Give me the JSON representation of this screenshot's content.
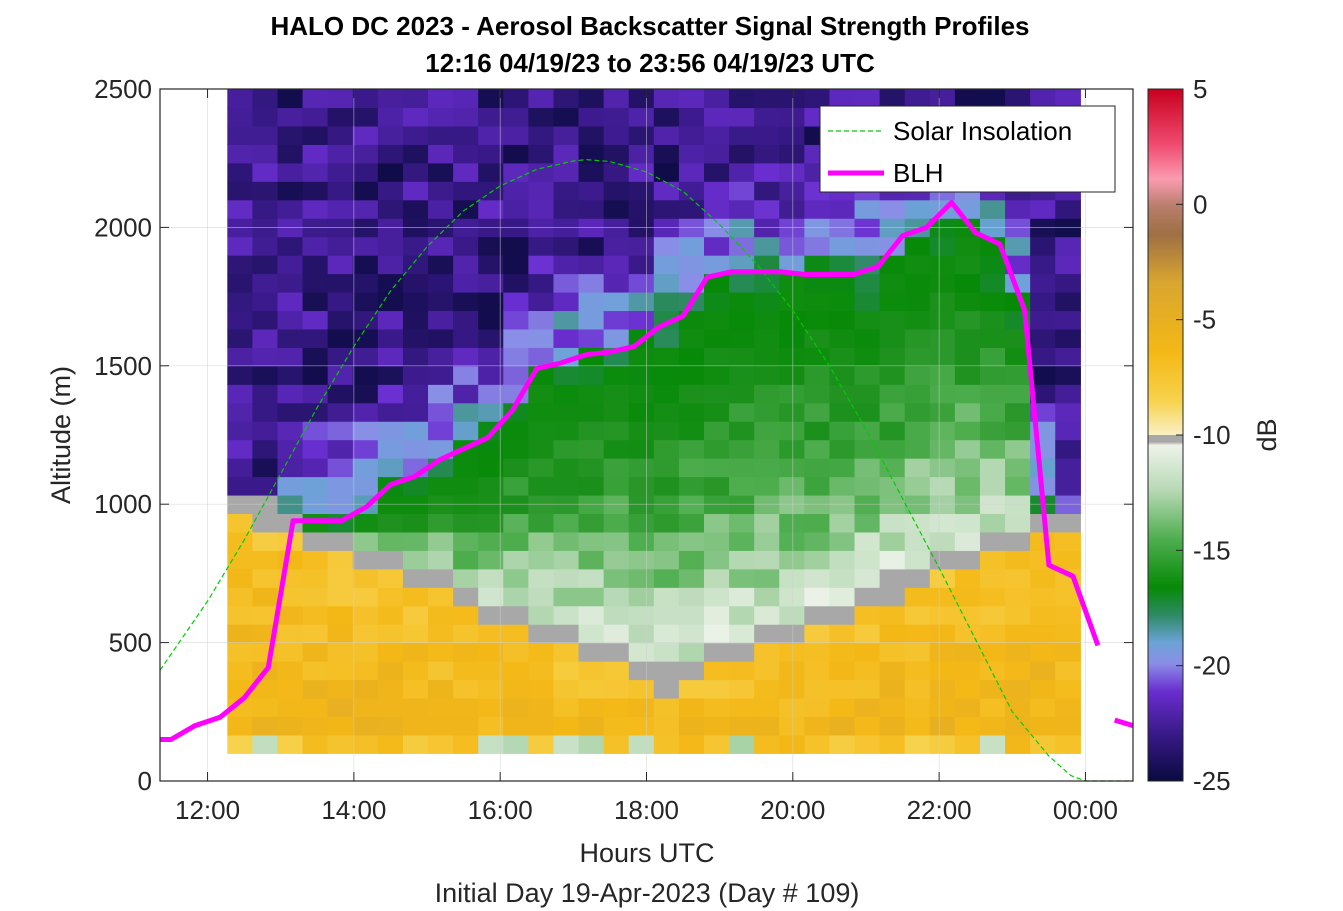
{
  "chart_data": {
    "type": "heatmap",
    "title_line1": "HALO DC 2023 - Aerosol Backscatter Signal Strength Profiles",
    "title_line2": "12:16 04/19/23 to 23:56 04/19/23  UTC",
    "xlabel": "Hours UTC",
    "xlabel_sub": "Initial Day 19-Apr-2023 (Day # 109)",
    "ylabel": "Altitude (m)",
    "xlim": [
      11.35,
      24.65
    ],
    "ylim": [
      0,
      2500
    ],
    "x_ticks": [
      12,
      14,
      16,
      18,
      20,
      22,
      24
    ],
    "x_tick_labels": [
      "12:00",
      "14:00",
      "16:00",
      "18:00",
      "20:00",
      "22:00",
      "00:00"
    ],
    "y_ticks": [
      0,
      500,
      1000,
      1500,
      2000,
      2500
    ],
    "y_tick_labels": [
      "0",
      "500",
      "1000",
      "1500",
      "2000",
      "2500"
    ],
    "grid": true,
    "colorbar": {
      "label": "dB",
      "range": [
        -25,
        5
      ],
      "ticks": [
        5,
        0,
        -5,
        -10,
        -15,
        -20,
        -25
      ],
      "tick_labels": [
        "5",
        "0",
        "-5",
        "-10",
        "-15",
        "-20",
        "-25"
      ]
    },
    "legend": {
      "placement": "top-right",
      "entries": [
        {
          "label": "Solar Insolation",
          "color": "#00cc00",
          "style": "dashed"
        },
        {
          "label": "BLH",
          "color": "#ff00ff",
          "style": "solid"
        }
      ]
    },
    "heatmap": {
      "x_start_hour": 12.27,
      "x_end_hour": 23.93,
      "altitude_min": 100,
      "altitude_max": 2500,
      "n_columns": 34,
      "n_rows": 36
    },
    "solar_insolation": {
      "x": [
        11.35,
        12.0,
        12.5,
        13.0,
        13.5,
        14.0,
        14.5,
        15.0,
        15.5,
        16.0,
        16.5,
        17.0,
        17.17,
        17.5,
        18.0,
        18.5,
        19.0,
        19.5,
        20.0,
        20.5,
        21.0,
        21.5,
        22.0,
        22.5,
        23.0,
        23.5,
        23.8,
        24.0,
        24.65
      ],
      "y": [
        400,
        650,
        870,
        1110,
        1350,
        1570,
        1770,
        1930,
        2060,
        2150,
        2210,
        2240,
        2245,
        2238,
        2200,
        2130,
        2010,
        1870,
        1700,
        1500,
        1270,
        1020,
        770,
        510,
        250,
        90,
        20,
        0,
        0
      ]
    },
    "blh": {
      "segments": [
        {
          "x": [
            11.35,
            11.5,
            11.83,
            12.17,
            12.5,
            12.83,
            13.17,
            13.5,
            13.83,
            14.17,
            14.5,
            14.83,
            15.17,
            15.5,
            15.83,
            16.17,
            16.5,
            16.83,
            17.17,
            17.5,
            17.83,
            18.17,
            18.5,
            18.83,
            19.17,
            19.5,
            19.83,
            20.17,
            20.5,
            20.83,
            21.17,
            21.5,
            21.83,
            22.17,
            22.5,
            22.83,
            23.17,
            23.5,
            23.83,
            24.17
          ],
          "y": [
            150,
            150,
            200,
            230,
            300,
            410,
            940,
            940,
            940,
            990,
            1070,
            1100,
            1160,
            1200,
            1240,
            1340,
            1490,
            1510,
            1540,
            1550,
            1570,
            1640,
            1680,
            1820,
            1840,
            1840,
            1840,
            1830,
            1830,
            1830,
            1860,
            1970,
            2000,
            2090,
            1980,
            1940,
            1700,
            780,
            740,
            490
          ]
        },
        {
          "x": [
            24.4,
            24.65
          ],
          "y": [
            220,
            200
          ]
        }
      ]
    }
  }
}
